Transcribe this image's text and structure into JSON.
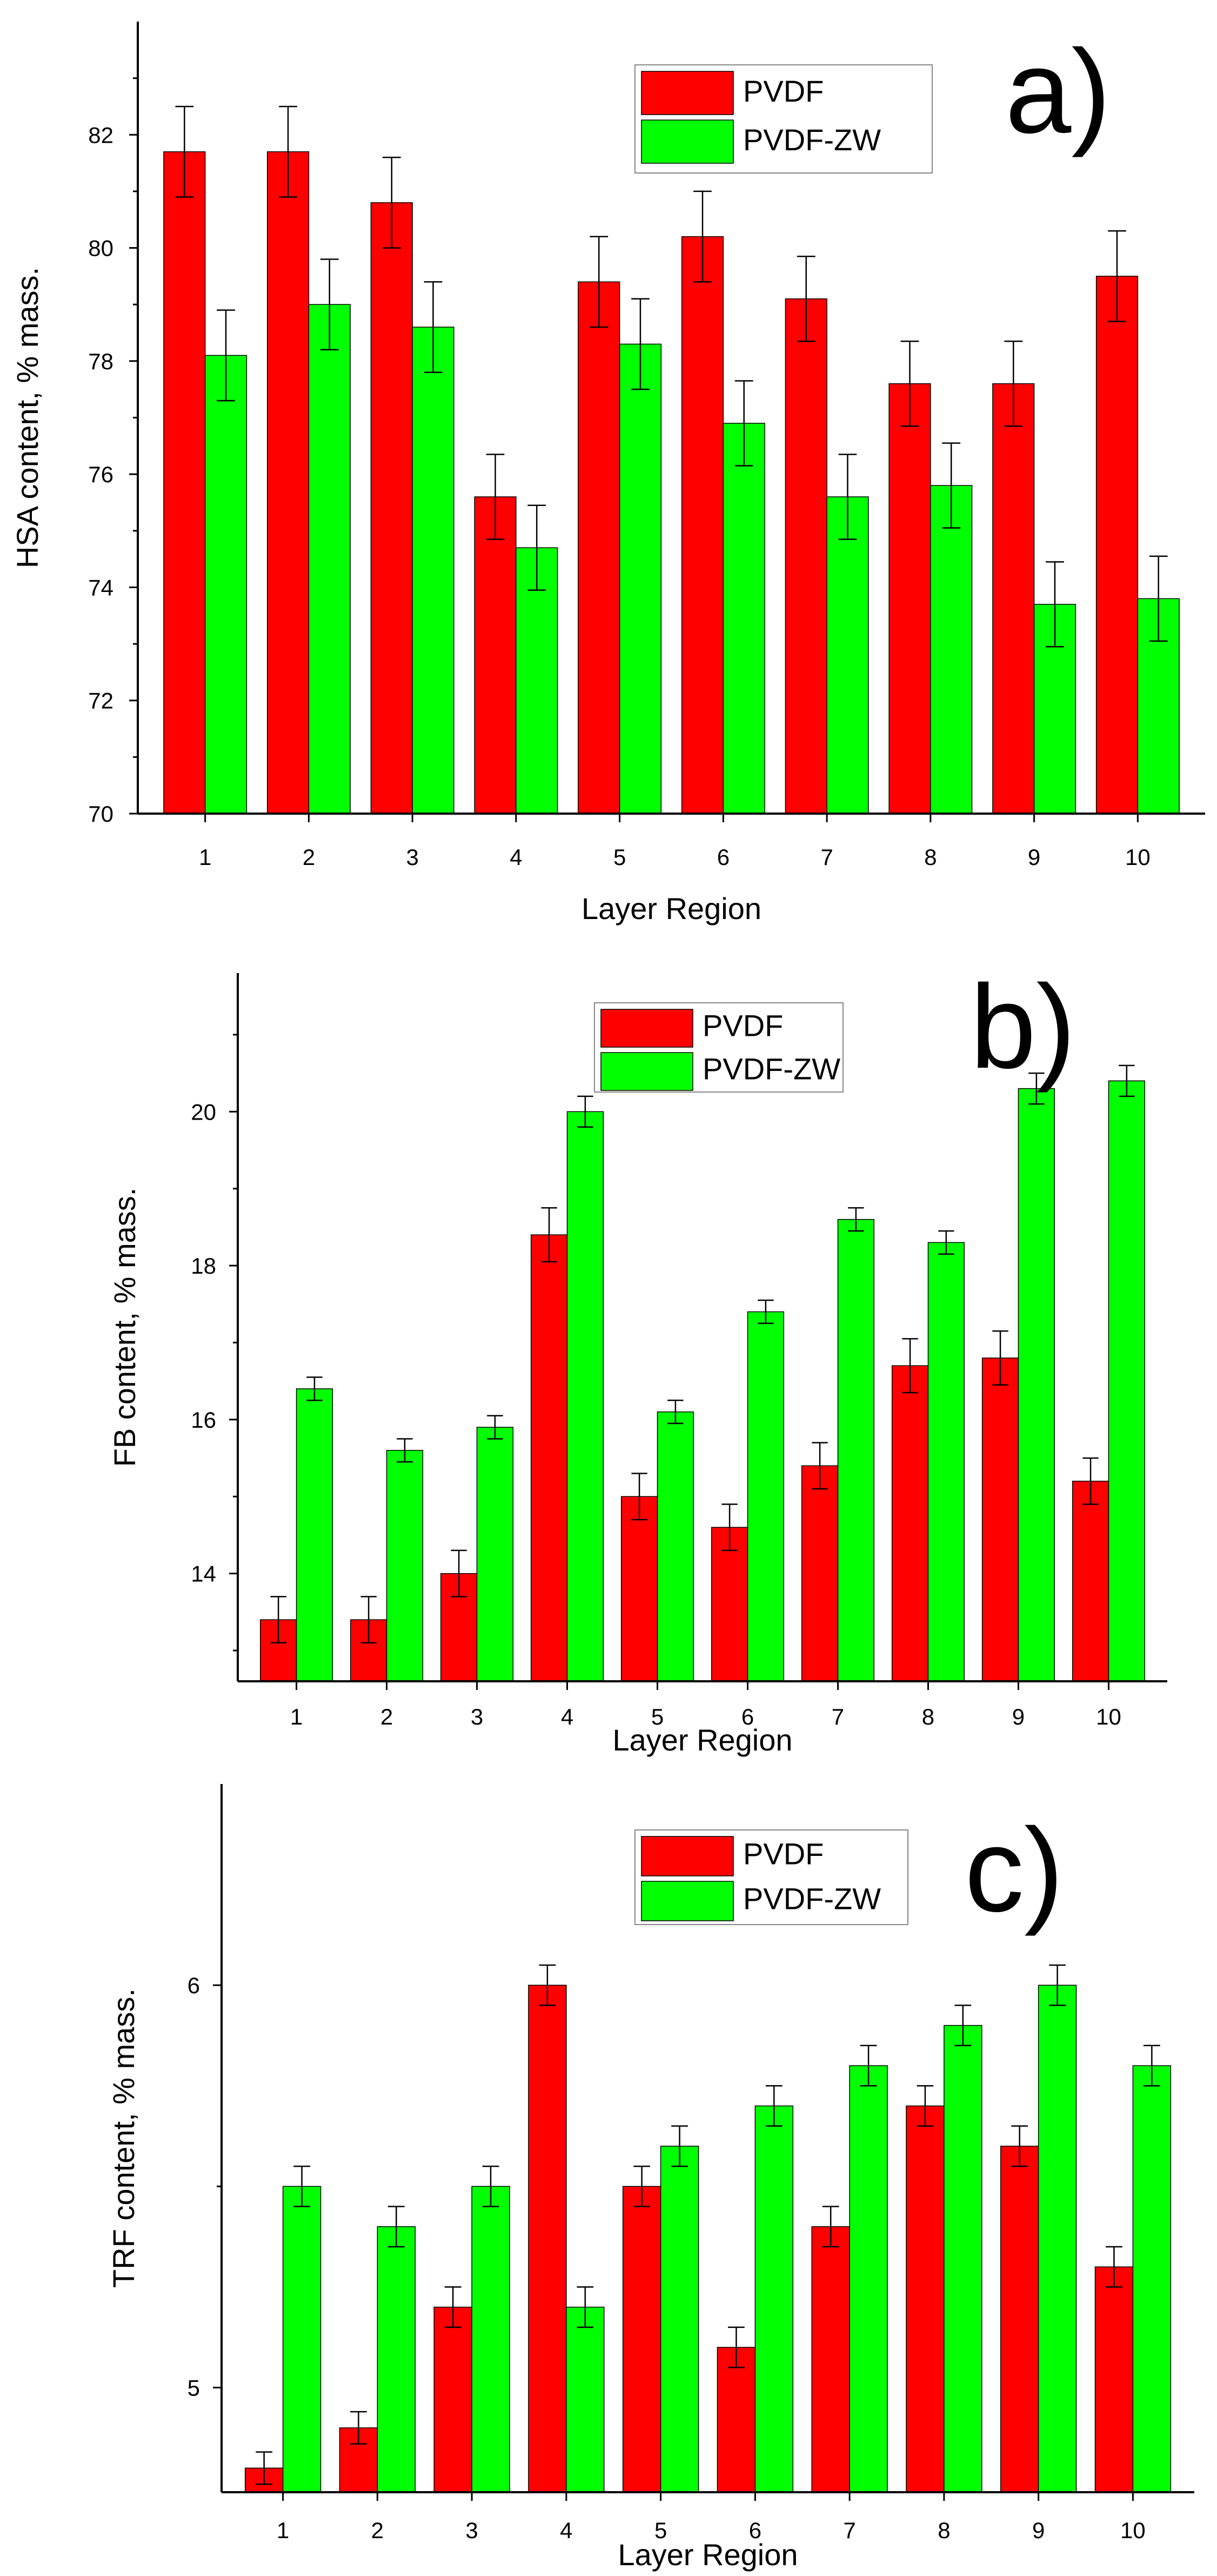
{
  "colors": {
    "pvdf": "#ff0000",
    "pvdf_zw": "#00ff00"
  },
  "chart_data": [
    {
      "type": "bar",
      "panel_label": "a)",
      "title": "",
      "xlabel": "Layer Region",
      "ylabel": "HSA content, % mass.",
      "ylim": [
        70,
        84
      ],
      "yticks": [
        70,
        72,
        74,
        76,
        78,
        80,
        82
      ],
      "legend_position": "top-right",
      "categories": [
        "1",
        "2",
        "3",
        "4",
        "5",
        "6",
        "7",
        "8",
        "9",
        "10"
      ],
      "series": [
        {
          "name": "PVDF",
          "color": "#ff0000",
          "values": [
            81.7,
            81.7,
            80.8,
            75.6,
            79.4,
            80.2,
            79.1,
            77.6,
            77.6,
            79.5
          ],
          "errors": [
            0.8,
            0.8,
            0.8,
            0.75,
            0.8,
            0.8,
            0.75,
            0.75,
            0.75,
            0.8
          ]
        },
        {
          "name": "PVDF-ZW",
          "color": "#00ff00",
          "values": [
            78.1,
            79.0,
            78.6,
            74.7,
            78.3,
            76.9,
            75.6,
            75.8,
            73.7,
            73.8
          ],
          "errors": [
            0.8,
            0.8,
            0.8,
            0.75,
            0.8,
            0.75,
            0.75,
            0.75,
            0.75,
            0.75
          ]
        }
      ]
    },
    {
      "type": "bar",
      "panel_label": "b)",
      "title": "",
      "xlabel": "Layer Region",
      "ylabel": "FB content, % mass.",
      "ylim": [
        12.6,
        21.8
      ],
      "yticks": [
        14,
        16,
        18,
        20
      ],
      "legend_position": "top-center",
      "categories": [
        "1",
        "2",
        "3",
        "4",
        "5",
        "6",
        "7",
        "8",
        "9",
        "10"
      ],
      "series": [
        {
          "name": "PVDF",
          "color": "#ff0000",
          "values": [
            13.4,
            13.4,
            14.0,
            18.4,
            15.0,
            14.6,
            15.4,
            16.7,
            16.8,
            15.2
          ],
          "errors": [
            0.3,
            0.3,
            0.3,
            0.35,
            0.3,
            0.3,
            0.3,
            0.35,
            0.35,
            0.3
          ]
        },
        {
          "name": "PVDF-ZW",
          "color": "#00ff00",
          "values": [
            16.4,
            15.6,
            15.9,
            20.0,
            16.1,
            17.4,
            18.6,
            18.3,
            20.3,
            20.4
          ],
          "errors": [
            0.15,
            0.15,
            0.15,
            0.2,
            0.15,
            0.15,
            0.15,
            0.15,
            0.2,
            0.2
          ]
        }
      ]
    },
    {
      "type": "bar",
      "panel_label": "c)",
      "title": "",
      "xlabel": "Layer Region",
      "ylabel": "TRF content, % mass.",
      "ylim": [
        4.74,
        6.5
      ],
      "yticks": [
        5,
        6
      ],
      "legend_position": "top-center",
      "categories": [
        "1",
        "2",
        "3",
        "4",
        "5",
        "6",
        "7",
        "8",
        "9",
        "10"
      ],
      "series": [
        {
          "name": "PVDF",
          "color": "#ff0000",
          "values": [
            4.8,
            4.9,
            5.2,
            6.0,
            5.5,
            5.1,
            5.4,
            5.7,
            5.6,
            5.3
          ],
          "errors": [
            0.04,
            0.04,
            0.05,
            0.05,
            0.05,
            0.05,
            0.05,
            0.05,
            0.05,
            0.05
          ]
        },
        {
          "name": "PVDF-ZW",
          "color": "#00ff00",
          "values": [
            5.5,
            5.4,
            5.5,
            5.2,
            5.6,
            5.7,
            5.8,
            5.9,
            6.0,
            5.8
          ],
          "errors": [
            0.05,
            0.05,
            0.05,
            0.05,
            0.05,
            0.05,
            0.05,
            0.05,
            0.05,
            0.05
          ]
        }
      ]
    }
  ]
}
